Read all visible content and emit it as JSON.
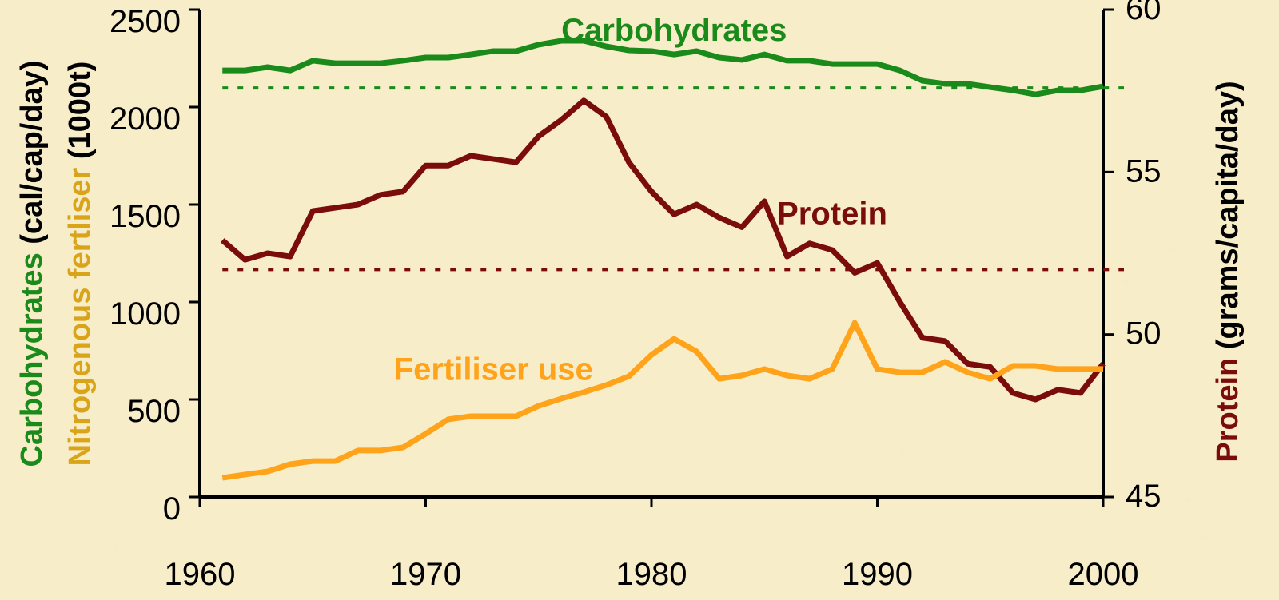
{
  "chart_data": {
    "type": "line",
    "annotations": [
      {
        "text": "Carbohydrates",
        "x": 1981,
        "y": 2340,
        "color": "#1a8a1a"
      },
      {
        "text": "Protein",
        "x": 1988,
        "y": 1400,
        "color": "#7a0c0c"
      },
      {
        "text": "Fertiliser use",
        "x": 1973,
        "y": 600,
        "color": "#ffa31a"
      }
    ],
    "y_label": [
      {
        "text": "Carbohydrates",
        "color": "#1a8a1a"
      },
      {
        "text": " (cal/cap/day)",
        "color": "#000000"
      }
    ],
    "y_label_2": [
      {
        "text": "Nitrogenous fertliser",
        "color": "#d9a419"
      },
      {
        "text": " (1000t)",
        "color": "#000000"
      }
    ],
    "y2_label": [
      {
        "text": "Protein",
        "color": "#7a0c0c"
      },
      {
        "text": " (grams/capita/day)",
        "color": "#000000"
      }
    ],
    "x": [
      1961,
      1962,
      1963,
      1964,
      1965,
      1966,
      1967,
      1968,
      1969,
      1970,
      1971,
      1972,
      1973,
      1974,
      1975,
      1976,
      1977,
      1978,
      1979,
      1980,
      1981,
      1982,
      1983,
      1984,
      1985,
      1986,
      1987,
      1988,
      1989,
      1990,
      1991,
      1992,
      1993,
      1994,
      1995,
      1996,
      1997,
      1998,
      1999,
      2000
    ],
    "series": [
      {
        "color": "#1a8a1a",
        "axis": "y",
        "values": [
          2188,
          2188,
          2205,
          2188,
          2238,
          2225,
          2225,
          2225,
          2238,
          2254,
          2254,
          2270,
          2287,
          2287,
          2320,
          2340,
          2340,
          2311,
          2291,
          2287,
          2270,
          2287,
          2254,
          2242,
          2270,
          2238,
          2238,
          2221,
          2221,
          2221,
          2188,
          2135,
          2119,
          2119,
          2102,
          2086,
          2065,
          2086,
          2086,
          2106
        ]
      },
      {
        "color": "#7a0c0c",
        "axis": "y2",
        "values": [
          52.9,
          52.3,
          52.5,
          52.4,
          53.8,
          53.9,
          54.0,
          54.3,
          54.4,
          55.2,
          55.2,
          55.5,
          55.4,
          55.3,
          56.1,
          56.6,
          57.2,
          56.7,
          55.3,
          54.4,
          53.7,
          54.0,
          53.6,
          53.3,
          54.1,
          52.4,
          52.8,
          52.6,
          51.9,
          52.2,
          51.0,
          49.9,
          49.8,
          49.1,
          49.0,
          48.2,
          48.0,
          48.3,
          48.2,
          49.1
        ]
      },
      {
        "color": "#ffa31a",
        "axis": "y",
        "values": [
          98,
          115,
          131,
          168,
          184,
          184,
          238,
          238,
          254,
          324,
          398,
          414,
          414,
          414,
          467,
          504,
          537,
          574,
          619,
          729,
          811,
          746,
          606,
          623,
          656,
          623,
          606,
          656,
          893,
          656,
          639,
          639,
          693,
          639,
          606,
          672,
          672,
          656,
          656,
          656
        ]
      }
    ],
    "reference_lines": [
      {
        "axis": "y",
        "value": 2098,
        "color": "#1a8a1a"
      },
      {
        "axis": "y2",
        "value": 52,
        "color": "#7a0c0c"
      }
    ],
    "xlim": [
      1960,
      2000
    ],
    "xticks": [
      1960,
      1970,
      1980,
      1990,
      2000
    ],
    "ylim": [
      0,
      2500
    ],
    "yticks": [
      0,
      500,
      1000,
      1500,
      2000,
      2500
    ],
    "y2lim": [
      45,
      60
    ],
    "y2ticks": [
      45,
      50,
      55,
      60
    ]
  }
}
